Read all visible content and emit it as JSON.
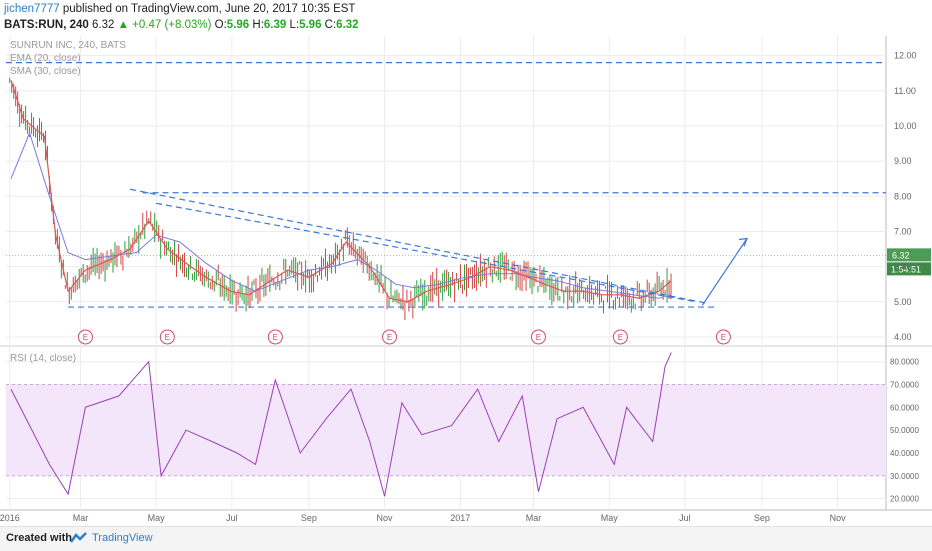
{
  "header": {
    "user": "jichen7777",
    "published": "published on TradingView.com, June 20, 2017 10:35 EST",
    "symbol": "BATS:RUN, 240",
    "last": "6.32",
    "change": "+0.47 (+8.03%)",
    "open_label": "O:",
    "open": "5.96",
    "high_label": "H:",
    "high": "6.39",
    "low_label": "L:",
    "low": "5.96",
    "close_label": "C:",
    "close": "6.32"
  },
  "footer": {
    "created_with": "Created with",
    "brand": "TradingView"
  },
  "colors": {
    "ema": "#e05555",
    "sma": "#7a7ae0",
    "trendline": "#3c78d8",
    "rsi": "#9c3fb5",
    "rsi_band": "#f3e6fb",
    "up": "#2c9e3a",
    "down": "#d04545",
    "price_tag": "#4d9c56",
    "timer_tag": "#3d8b47",
    "earnings": "#d04a6c"
  },
  "chart_data": [
    {
      "type": "line",
      "title": "SUNRUN INC, 240, BATS",
      "series": [
        {
          "name": "EMA (20, close)",
          "x": [
            "2016-01-05",
            "2016-01-15",
            "2016-02-01",
            "2016-02-10",
            "2016-02-20",
            "2016-03-05",
            "2016-03-25",
            "2016-04-10",
            "2016-04-25",
            "2016-05-10",
            "2016-05-25",
            "2016-06-10",
            "2016-06-30",
            "2016-07-15",
            "2016-08-01",
            "2016-08-15",
            "2016-09-01",
            "2016-09-20",
            "2016-10-01",
            "2016-10-20",
            "2016-11-05",
            "2016-11-20",
            "2016-12-05",
            "2016-12-25",
            "2017-01-10",
            "2017-01-25",
            "2017-02-10",
            "2017-02-25",
            "2017-03-10",
            "2017-03-25",
            "2017-04-10",
            "2017-04-25",
            "2017-05-10",
            "2017-05-25",
            "2017-06-10",
            "2017-06-20"
          ],
          "values": [
            11.3,
            10.2,
            9.7,
            6.9,
            5.3,
            5.9,
            6.2,
            6.5,
            7.3,
            6.5,
            6.1,
            5.7,
            5.3,
            5.2,
            5.6,
            5.9,
            5.7,
            6.1,
            6.7,
            6.0,
            5.1,
            5.0,
            5.3,
            5.5,
            5.7,
            6.0,
            5.9,
            5.7,
            5.5,
            5.3,
            5.3,
            5.2,
            5.2,
            5.1,
            5.3,
            5.6
          ]
        },
        {
          "name": "SMA (30, close)",
          "x": [
            "2016-01-05",
            "2016-01-20",
            "2016-02-05",
            "2016-02-20",
            "2016-03-05",
            "2016-03-25",
            "2016-04-15",
            "2016-05-01",
            "2016-05-20",
            "2016-06-10",
            "2016-07-01",
            "2016-07-20",
            "2016-08-10",
            "2016-09-01",
            "2016-09-20",
            "2016-10-10",
            "2016-10-25",
            "2016-11-10",
            "2016-11-25",
            "2016-12-15",
            "2017-01-05",
            "2017-01-25",
            "2017-02-15",
            "2017-03-01",
            "2017-03-20",
            "2017-04-10",
            "2017-05-01",
            "2017-05-20",
            "2017-06-10",
            "2017-06-20"
          ],
          "values": [
            8.5,
            9.8,
            8.0,
            6.4,
            6.2,
            6.3,
            6.4,
            6.9,
            6.7,
            6.1,
            5.6,
            5.3,
            5.6,
            5.9,
            6.0,
            6.2,
            5.9,
            5.5,
            5.4,
            5.5,
            5.7,
            5.8,
            5.8,
            5.7,
            5.6,
            5.4,
            5.3,
            5.2,
            5.1,
            5.2
          ]
        }
      ],
      "ylim": [
        3.8,
        12.5
      ],
      "y_ticks": [
        "12.00",
        "11.00",
        "10.00",
        "9.00",
        "8.00",
        "7.00",
        "6.00",
        "5.00",
        "4.00"
      ],
      "x_ticks": [
        "2016",
        "Mar",
        "May",
        "Jul",
        "Sep",
        "Nov",
        "2017",
        "Mar",
        "May",
        "Jul",
        "Sep",
        "Nov"
      ],
      "trendlines": [
        {
          "x": [
            "2016-01-01",
            "2017-12-10"
          ],
          "values": [
            11.8,
            11.8
          ]
        },
        {
          "x": [
            "2016-04-20",
            "2017-12-10"
          ],
          "values": [
            8.1,
            8.1
          ]
        },
        {
          "x": [
            "2016-02-20",
            "2017-07-25"
          ],
          "values": [
            4.85,
            4.85
          ]
        },
        {
          "x": [
            "2016-04-10",
            "2017-07-20"
          ],
          "values": [
            8.2,
            4.95
          ]
        },
        {
          "x": [
            "2016-05-01",
            "2017-07-10"
          ],
          "values": [
            7.8,
            5.0
          ]
        },
        {
          "x": [
            "2017-07-15",
            "2017-08-20"
          ],
          "values": [
            4.9,
            6.8
          ]
        }
      ],
      "earnings": {
        "label": "E",
        "dates": [
          "2016-03-05",
          "2016-05-10",
          "2016-08-05",
          "2016-11-05",
          "2017-03-05",
          "2017-05-10",
          "2017-08-01"
        ]
      },
      "last_price": "6.32",
      "countdown": "1:54:51"
    },
    {
      "type": "line",
      "title": "RSI (14, close)",
      "series": [
        {
          "name": "RSI (14, close)",
          "x": [
            "2016-01-05",
            "2016-02-05",
            "2016-02-20",
            "2016-03-05",
            "2016-04-01",
            "2016-04-25",
            "2016-05-05",
            "2016-05-25",
            "2016-06-15",
            "2016-07-05",
            "2016-07-20",
            "2016-08-05",
            "2016-08-25",
            "2016-09-15",
            "2016-10-05",
            "2016-10-20",
            "2016-11-01",
            "2016-11-15",
            "2016-12-01",
            "2016-12-25",
            "2017-01-15",
            "2017-02-01",
            "2017-02-20",
            "2017-03-05",
            "2017-03-20",
            "2017-04-10",
            "2017-05-05",
            "2017-05-15",
            "2017-06-05",
            "2017-06-15",
            "2017-06-20"
          ],
          "values": [
            68,
            35,
            22,
            60,
            65,
            80,
            30,
            50,
            45,
            40,
            35,
            72,
            40,
            55,
            68,
            45,
            21,
            62,
            48,
            52,
            68,
            45,
            65,
            23,
            55,
            60,
            35,
            60,
            45,
            78,
            84
          ]
        }
      ],
      "ylim": [
        15,
        86
      ],
      "y_ticks": [
        "80.0000",
        "70.0000",
        "60.0000",
        "50.0000",
        "40.0000",
        "30.0000",
        "20.0000"
      ]
    }
  ]
}
